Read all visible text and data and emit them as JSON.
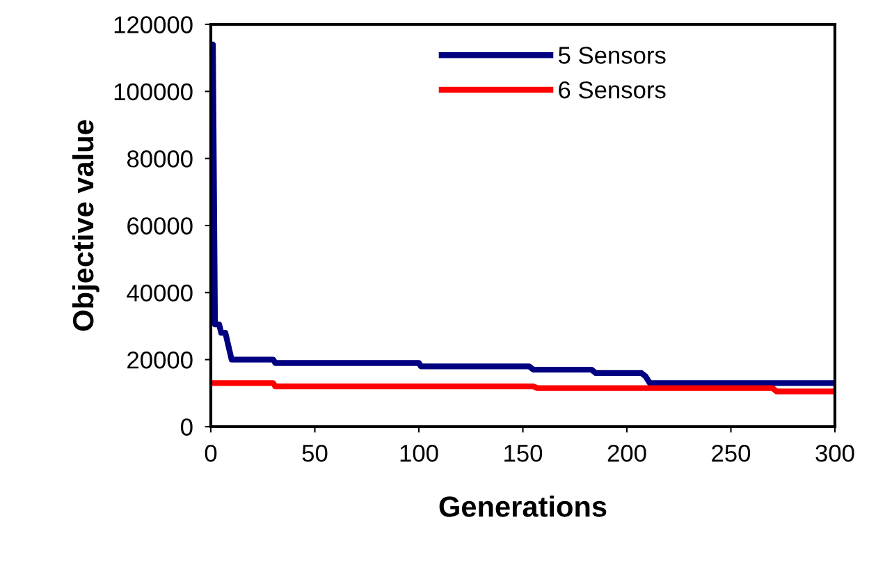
{
  "chart_data": {
    "type": "line",
    "xlabel": "Generations",
    "ylabel": "Objective value",
    "xlim": [
      0,
      300
    ],
    "xticks": [
      0,
      50,
      100,
      150,
      200,
      250,
      300
    ],
    "ylim": [
      0,
      120000
    ],
    "yticks": [
      0,
      20000,
      40000,
      60000,
      80000,
      100000,
      120000
    ],
    "grid": false,
    "legend": "top",
    "marker": "none",
    "line_style": "solid",
    "series": [
      {
        "name": "5 Sensors",
        "color": "#000080",
        "x": [
          1,
          2,
          4,
          5,
          7,
          10,
          30,
          31,
          100,
          101,
          153,
          155,
          183,
          185,
          207,
          209,
          211,
          300
        ],
        "values": [
          114000,
          30500,
          30500,
          28000,
          28000,
          20000,
          20000,
          19000,
          19000,
          18000,
          18000,
          17000,
          17000,
          16000,
          16000,
          15000,
          13000,
          13000
        ]
      },
      {
        "name": "6 Sensors",
        "color": "#ff0000",
        "x": [
          0,
          30,
          31,
          155,
          157,
          270,
          272,
          300
        ],
        "values": [
          13000,
          13000,
          12000,
          12000,
          11500,
          11500,
          10500,
          10500
        ]
      }
    ]
  }
}
